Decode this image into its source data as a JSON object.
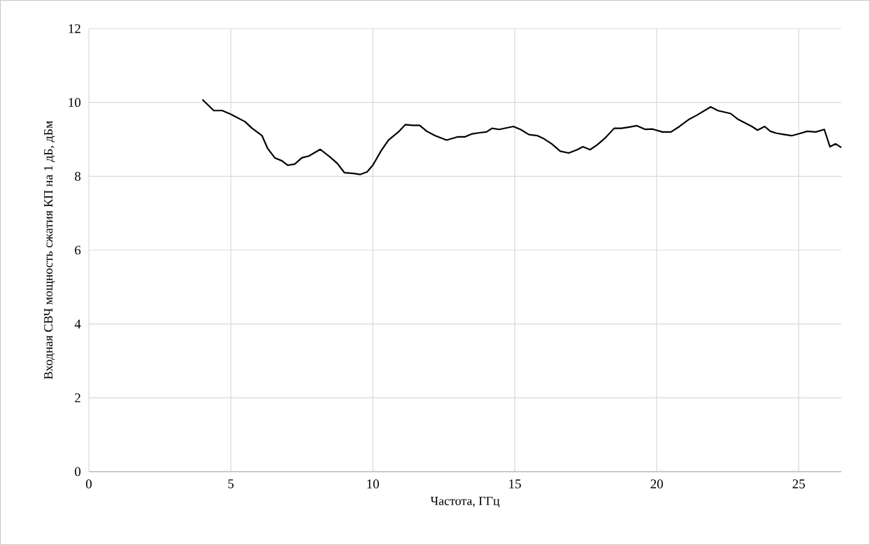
{
  "chart_data": {
    "type": "line",
    "xlabel": "Частота, ГГц",
    "ylabel": "Входная СВЧ мощность сжатия КП на 1 дБ, дБм",
    "xlim": [
      0,
      26.5
    ],
    "ylim": [
      0,
      12
    ],
    "xticks": [
      0,
      5,
      10,
      15,
      20,
      25
    ],
    "yticks": [
      0,
      2,
      4,
      6,
      8,
      10,
      12
    ],
    "grid": true,
    "marker": "none",
    "line_style": "solid",
    "series": [
      {
        "color": "#000000",
        "x": [
          4.0,
          4.4,
          4.7,
          5.0,
          5.5,
          5.75,
          6.1,
          6.3,
          6.55,
          6.8,
          7.0,
          7.25,
          7.5,
          7.75,
          8.15,
          8.5,
          8.75,
          9.0,
          9.3,
          9.55,
          9.8,
          10.0,
          10.3,
          10.55,
          10.9,
          11.15,
          11.4,
          11.65,
          11.9,
          12.2,
          12.6,
          13.0,
          13.25,
          13.5,
          13.75,
          14.0,
          14.2,
          14.45,
          14.95,
          15.2,
          15.5,
          15.8,
          16.0,
          16.3,
          16.6,
          16.9,
          17.2,
          17.4,
          17.65,
          17.9,
          18.2,
          18.5,
          18.75,
          19.0,
          19.3,
          19.6,
          19.85,
          20.2,
          20.5,
          20.8,
          21.15,
          21.4,
          21.9,
          22.15,
          22.6,
          22.85,
          23.1,
          23.35,
          23.55,
          23.8,
          24.0,
          24.2,
          24.5,
          24.75,
          25.0,
          25.3,
          25.6,
          25.9,
          26.1,
          26.3,
          26.5
        ],
        "values": [
          10.08,
          9.78,
          9.78,
          9.68,
          9.48,
          9.3,
          9.1,
          8.75,
          8.5,
          8.42,
          8.3,
          8.33,
          8.5,
          8.55,
          8.73,
          8.52,
          8.35,
          8.1,
          8.08,
          8.05,
          8.12,
          8.3,
          8.7,
          8.98,
          9.2,
          9.4,
          9.38,
          9.38,
          9.22,
          9.1,
          8.98,
          9.07,
          9.07,
          9.15,
          9.18,
          9.2,
          9.3,
          9.27,
          9.35,
          9.27,
          9.13,
          9.1,
          9.03,
          8.88,
          8.68,
          8.63,
          8.72,
          8.8,
          8.72,
          8.85,
          9.05,
          9.3,
          9.3,
          9.33,
          9.37,
          9.27,
          9.28,
          9.2,
          9.2,
          9.35,
          9.55,
          9.65,
          9.88,
          9.78,
          9.7,
          9.55,
          9.45,
          9.35,
          9.25,
          9.35,
          9.22,
          9.17,
          9.13,
          9.1,
          9.15,
          9.22,
          9.2,
          9.27,
          8.8,
          8.88,
          8.78
        ]
      }
    ]
  }
}
